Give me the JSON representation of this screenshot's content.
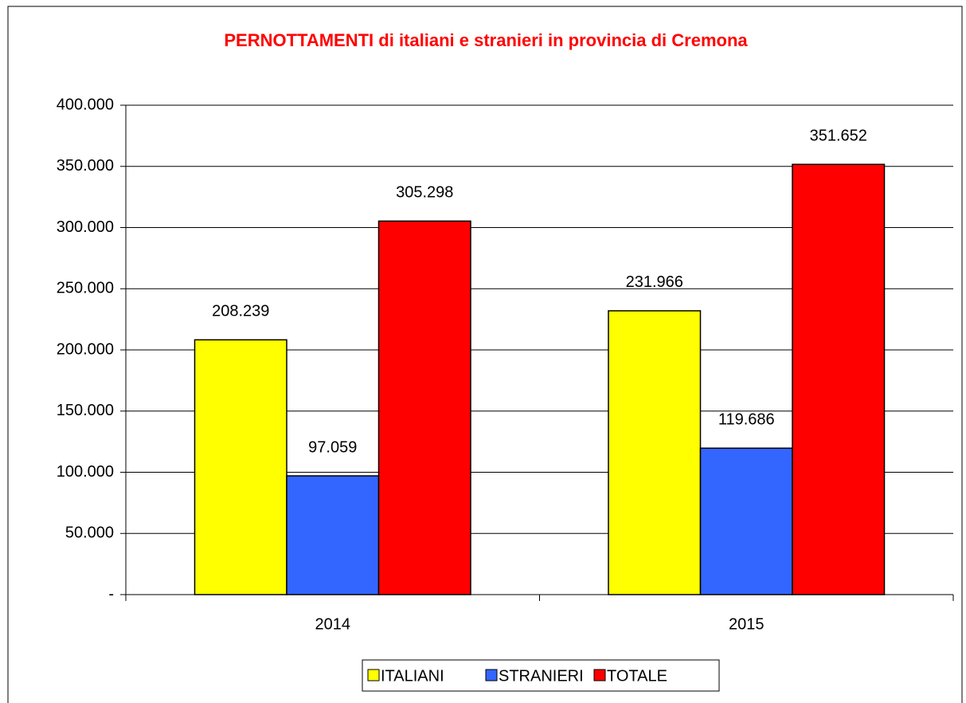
{
  "chart_data": {
    "type": "bar",
    "title": "PERNOTTAMENTI di italiani e stranieri in provincia di Cremona",
    "categories": [
      "2014",
      "2015"
    ],
    "series": [
      {
        "name": "ITALIANI",
        "color": "#ffff00",
        "values": [
          208239,
          231966
        ],
        "value_labels": [
          "208.239",
          "231.966"
        ]
      },
      {
        "name": "STRANIERI",
        "color": "#3366ff",
        "values": [
          97059,
          119686
        ],
        "value_labels": [
          "97.059",
          "119.686"
        ]
      },
      {
        "name": "TOTALE",
        "color": "#ff0000",
        "values": [
          305298,
          351652
        ],
        "value_labels": [
          "305.298",
          "351.652"
        ]
      }
    ],
    "ylim": [
      0,
      400000
    ],
    "yticks": [
      {
        "value": 0,
        "label": "-"
      },
      {
        "value": 50000,
        "label": "50.000"
      },
      {
        "value": 100000,
        "label": "100.000"
      },
      {
        "value": 150000,
        "label": "150.000"
      },
      {
        "value": 200000,
        "label": "200.000"
      },
      {
        "value": 250000,
        "label": "250.000"
      },
      {
        "value": 300000,
        "label": "300.000"
      },
      {
        "value": 350000,
        "label": "350.000"
      },
      {
        "value": 400000,
        "label": "400.000"
      }
    ],
    "grid": true,
    "legend": "bottom"
  }
}
